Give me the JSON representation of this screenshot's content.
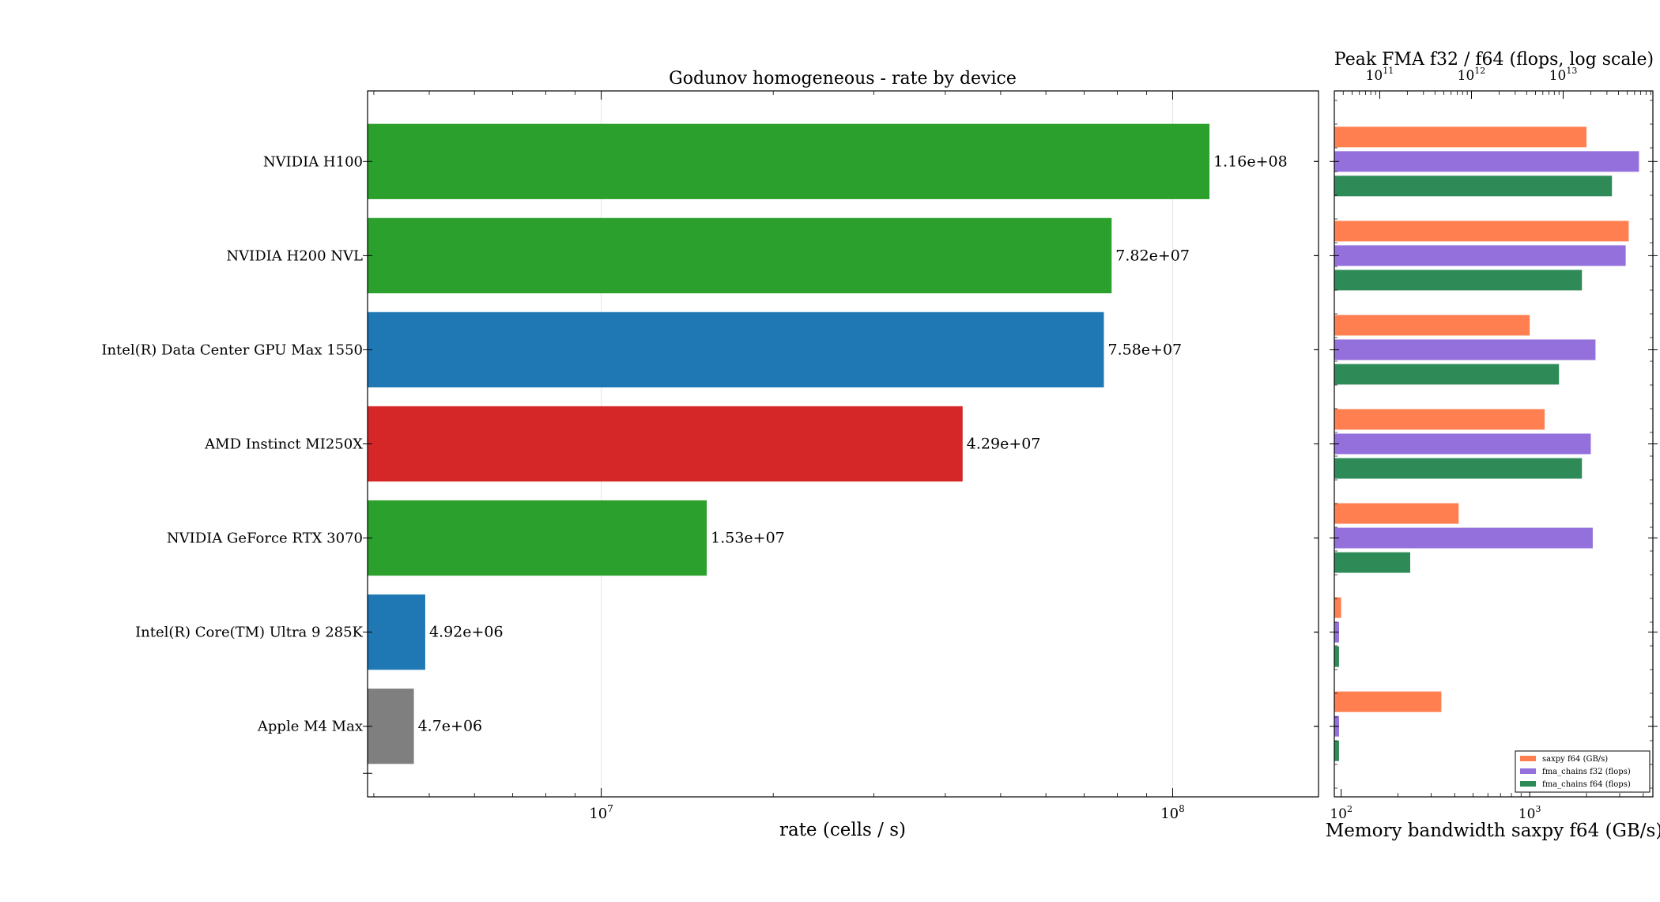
{
  "colors": {
    "nvidia_green": "#2ca02c",
    "intel_blue": "#1f77b4",
    "amd_red": "#d62728",
    "apple_gray": "#7f7f7f",
    "saxpy": "#ff7f50",
    "fma_f32": "#9370db",
    "fma_f64": "#2e8b57"
  },
  "chart_data": [
    {
      "type": "bar",
      "orientation": "horizontal",
      "title": "Godunov homogeneous - rate by device",
      "xlabel": "rate (cells / s)",
      "ylabel": "",
      "xscale": "log",
      "xlim": [
        3900000.0,
        180000000.0
      ],
      "xticks": [
        {
          "v": 10000000.0,
          "b": "10",
          "e": "7"
        },
        {
          "v": 100000000.0,
          "b": "10",
          "e": "8"
        }
      ],
      "grid": true,
      "categories": [
        "NVIDIA H100",
        "NVIDIA H200 NVL",
        "Intel(R) Data Center GPU Max 1550",
        "AMD Instinct MI250X",
        "NVIDIA GeForce RTX 3070",
        "Intel(R) Core(TM) Ultra 9 285K",
        "Apple M4 Max"
      ],
      "values": [
        116000000.0,
        78200000.0,
        75800000.0,
        42900000.0,
        15300000.0,
        4920000.0,
        4700000.0
      ],
      "value_labels": [
        "1.16e+08",
        "7.82e+07",
        "7.58e+07",
        "4.29e+07",
        "1.53e+07",
        "4.92e+06",
        "4.7e+06"
      ],
      "bar_colors": [
        "#2ca02c",
        "#2ca02c",
        "#1f77b4",
        "#d62728",
        "#2ca02c",
        "#1f77b4",
        "#7f7f7f"
      ]
    },
    {
      "type": "bar",
      "orientation": "horizontal",
      "title": "Peak FMA f32 / f64 (flops, log scale)",
      "xlabel": "Memory bandwidth saxpy f64 (GB/s)",
      "bottom_xscale": "log",
      "bottom_xlim": [
        92,
        4500
      ],
      "bottom_xticks": [
        {
          "v": 100,
          "b": "10",
          "e": "2"
        },
        {
          "v": 1000,
          "b": "10",
          "e": "3"
        }
      ],
      "top_xscale": "log",
      "top_xlim": [
        32000000000.0,
        95000000000000.0
      ],
      "top_xticks": [
        {
          "v": 100000000000.0,
          "b": "10",
          "e": "11"
        },
        {
          "v": 1000000000000.0,
          "b": "10",
          "e": "12"
        },
        {
          "v": 10000000000000.0,
          "b": "10",
          "e": "13"
        }
      ],
      "legend_position": "lower right",
      "series": [
        {
          "name": "saxpy f64 (GB/s)",
          "axis": "bottom",
          "color": "#ff7f50",
          "values": [
            2000,
            3350,
            1000,
            1200,
            420,
            100,
            340
          ]
        },
        {
          "name": "fma_chains f32 (flops)",
          "axis": "top",
          "color": "#9370db",
          "values": [
            67000000000000.0,
            48000000000000.0,
            22500000000000.0,
            20000000000000.0,
            21000000000000.0,
            36000000000.0,
            36000000000.0
          ]
        },
        {
          "name": "fma_chains f64 (flops)",
          "axis": "top",
          "color": "#2e8b57",
          "values": [
            34000000000000.0,
            16000000000000.0,
            9000000000000.0,
            16000000000000.0,
            215000000000.0,
            36000000000.0,
            36000000000.0
          ]
        }
      ]
    }
  ]
}
